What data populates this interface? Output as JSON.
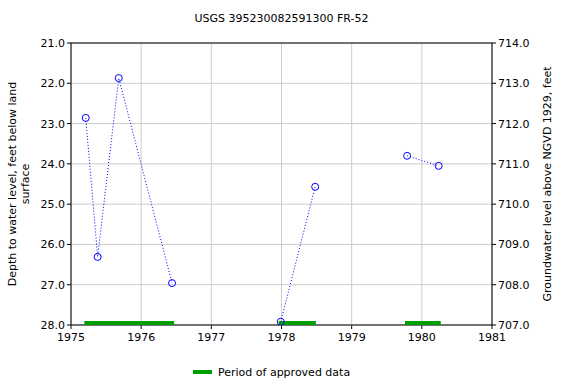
{
  "chart_data": {
    "type": "line",
    "title": "USGS 395230082591300 FR-52",
    "ylabel": "Depth to water level, feet below land\nsurface",
    "y2label": "Groundwater level above NGVD 1929, feet",
    "x": [
      1975.21,
      1975.38,
      1975.68,
      1976.44,
      null,
      1977.99,
      1978.48,
      null,
      1979.79,
      1980.24
    ],
    "series": [
      {
        "color": "#0000ff",
        "marker": "circle",
        "line_style": "dotted",
        "values": [
          22.86,
          26.31,
          21.87,
          26.96,
          null,
          27.92,
          24.57,
          null,
          23.8,
          24.05
        ]
      }
    ],
    "approved_periods": {
      "name": "Period of approved data",
      "color": "#00a000",
      "ranges": [
        [
          1975.19,
          1976.47
        ],
        [
          1977.96,
          1978.49
        ],
        [
          1979.76,
          1980.27
        ]
      ]
    },
    "xlim": [
      1975,
      1981
    ],
    "xticks": [
      1975,
      1976,
      1977,
      1978,
      1979,
      1980,
      1981
    ],
    "ylim": [
      28,
      21
    ],
    "yticks": [
      {
        "value": 21,
        "label": "21.0"
      },
      {
        "value": 22,
        "label": "22.0"
      },
      {
        "value": 23,
        "label": "23.0"
      },
      {
        "value": 24,
        "label": "24.0"
      },
      {
        "value": 25,
        "label": "25.0"
      },
      {
        "value": 26,
        "label": "26.0"
      },
      {
        "value": 27,
        "label": "27.0"
      },
      {
        "value": 28,
        "label": "28.0"
      }
    ],
    "y2lim": [
      707,
      714
    ],
    "y2ticks": [
      {
        "value": 714,
        "label": "714.0"
      },
      {
        "value": 713,
        "label": "713.0"
      },
      {
        "value": 712,
        "label": "712.0"
      },
      {
        "value": 711,
        "label": "711.0"
      },
      {
        "value": 710,
        "label": "710.0"
      },
      {
        "value": 709,
        "label": "709.0"
      },
      {
        "value": 708,
        "label": "708.0"
      },
      {
        "value": 707,
        "label": "707.0"
      }
    ],
    "grid": true,
    "legend": "bottom"
  }
}
